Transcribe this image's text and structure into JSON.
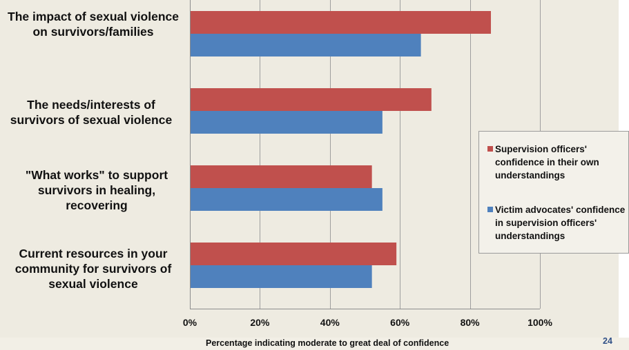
{
  "chart_data": {
    "type": "bar",
    "orientation": "horizontal",
    "categories": [
      "The impact of sexual violence on survivors/families",
      "The needs/interests of survivors of sexual violence",
      "\"What works\" to support survivors in healing, recovering",
      "Current resources in your community for survivors of sexual violence"
    ],
    "series": [
      {
        "name": "Supervision officers' confidence in their own understandings",
        "color": "#c0504d",
        "values": [
          86,
          69,
          52,
          59
        ]
      },
      {
        "name": "Victim advocates' confidence in supervision officers' understandings",
        "color": "#4f81bd",
        "values": [
          66,
          55,
          55,
          52
        ]
      }
    ],
    "xlim": [
      0,
      100
    ],
    "xticks": [
      "0%",
      "20%",
      "40%",
      "60%",
      "80%",
      "100%"
    ],
    "xlabel": "Percentage indicating moderate to great deal of confidence",
    "grid": true,
    "legend_position": "right"
  },
  "slide": {
    "page_number": "24"
  }
}
